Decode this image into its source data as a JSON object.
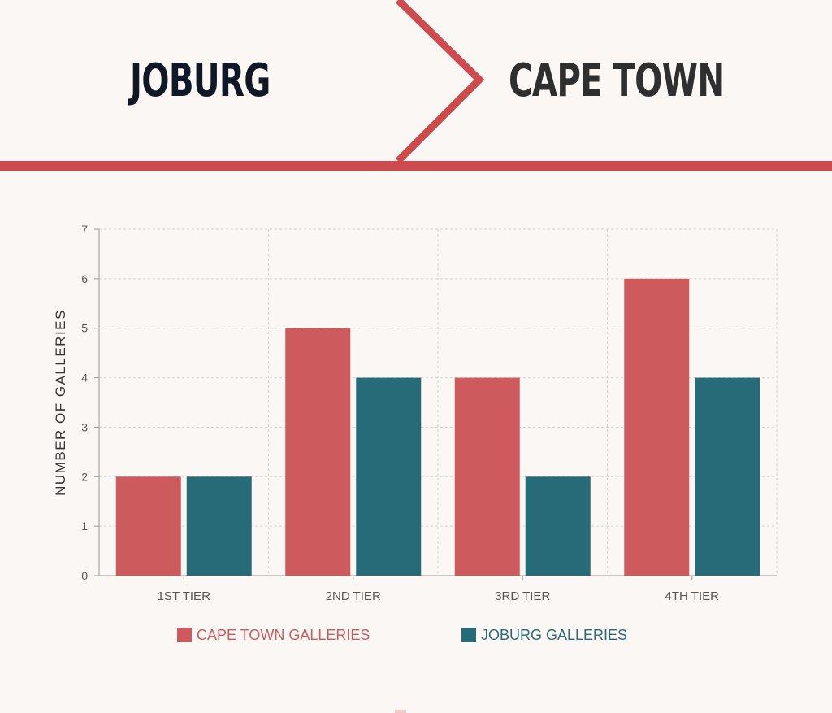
{
  "header": {
    "left_city": "JOBURG",
    "right_city": "CAPE TOWN",
    "accent_color": "#cd4a4e"
  },
  "chart_data": {
    "type": "bar",
    "categories": [
      "1ST TIER",
      "2ND TIER",
      "3RD TIER",
      "4TH TIER"
    ],
    "series": [
      {
        "name": "CAPE TOWN GALLERIES",
        "values": [
          2,
          5,
          4,
          6
        ],
        "color": "#cd5a5c"
      },
      {
        "name": "JOBURG GALLERIES",
        "values": [
          2,
          4,
          2,
          4
        ],
        "color": "#276a78"
      }
    ],
    "title": "",
    "xlabel": "",
    "ylabel": "NUMBER OF GALLERIES",
    "ylim": [
      0,
      7
    ],
    "yticks": [
      "0",
      "1",
      "2",
      "3",
      "4",
      "5",
      "6",
      "7"
    ],
    "grid": true,
    "legend_position": "bottom"
  }
}
